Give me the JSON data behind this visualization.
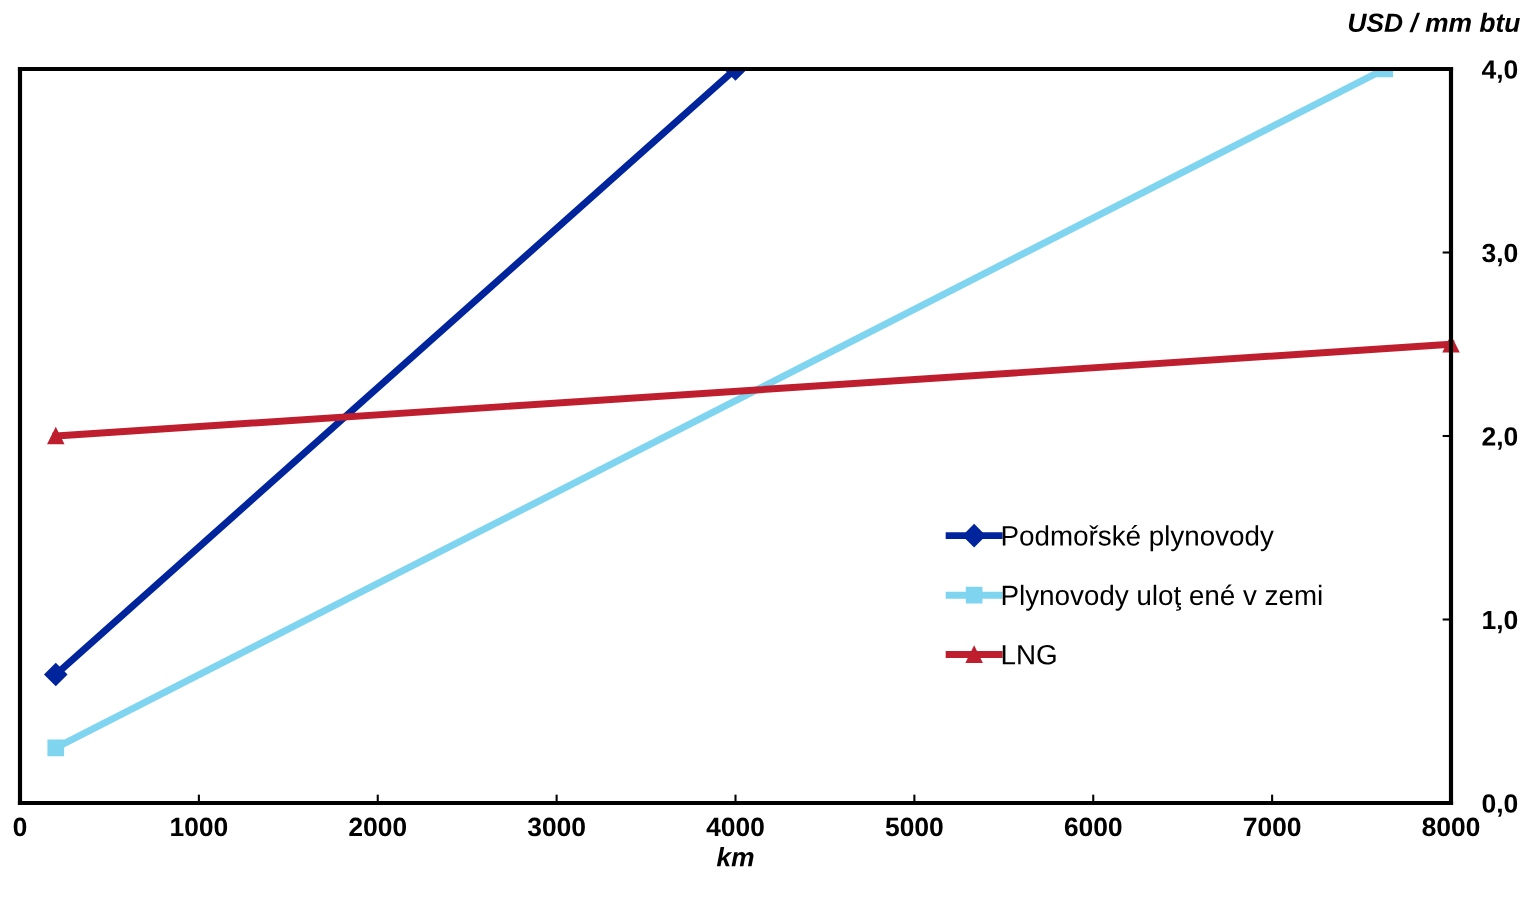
{
  "chart_data": {
    "type": "line",
    "xlabel": "km",
    "ylabel": "USD / mm btu",
    "xlim": [
      0,
      8000
    ],
    "xticks": [
      0,
      1000,
      2000,
      3000,
      4000,
      5000,
      6000,
      7000,
      8000
    ],
    "ylim": [
      0,
      4
    ],
    "yticks": [
      {
        "value": 0,
        "label": "0,0"
      },
      {
        "value": 1,
        "label": "1,0"
      },
      {
        "value": 2,
        "label": "2,0"
      },
      {
        "value": 3,
        "label": "3,0"
      },
      {
        "value": 4,
        "label": "4,0"
      }
    ],
    "grid": false,
    "legend": "right",
    "line_style": "solid",
    "series": [
      {
        "name": "Podmořské plynovody",
        "color": "#00249c",
        "marker": "diamond",
        "x": [
          200,
          4000
        ],
        "values": [
          0.7,
          4.0
        ]
      },
      {
        "name": "Plynovody uloţ ené v zemi",
        "color": "#7fd4f0",
        "marker": "square",
        "x": [
          200,
          7630
        ],
        "values": [
          0.3,
          4.0
        ]
      },
      {
        "name": "LNG",
        "color": "#be1e2d",
        "marker": "triangle",
        "x": [
          200,
          8000
        ],
        "values": [
          2.0,
          2.5
        ]
      }
    ]
  }
}
